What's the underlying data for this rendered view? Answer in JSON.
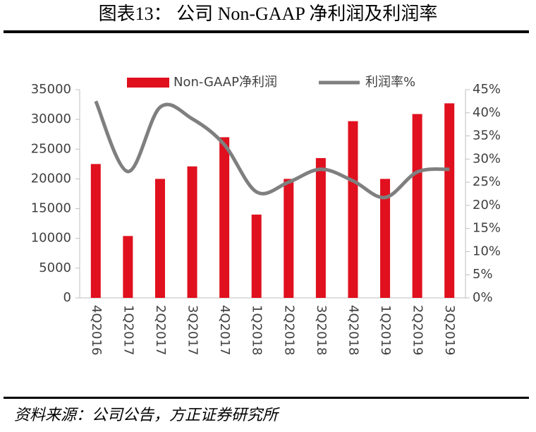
{
  "header": {
    "title": "图表13：  公司 Non-GAAP 净利润及利润率"
  },
  "chart_data": {
    "type": "bar-line",
    "categories": [
      "4Q2016",
      "1Q2017",
      "2Q2017",
      "3Q2017",
      "4Q2017",
      "1Q2018",
      "2Q2018",
      "3Q2018",
      "4Q2018",
      "1Q2019",
      "2Q2019",
      "3Q2019"
    ],
    "series": [
      {
        "name": "Non-GAAP净利润",
        "type": "bar",
        "color": "#e0101e",
        "values": [
          22500,
          10400,
          20000,
          22100,
          27000,
          14000,
          20000,
          23500,
          29700,
          20000,
          30900,
          32700
        ]
      },
      {
        "name": "利润率%",
        "type": "line",
        "color": "#7f7f7f",
        "axis": "y2",
        "values": [
          42.5,
          27.3,
          41.2,
          38.7,
          33.1,
          22.9,
          25.0,
          27.8,
          25.3,
          21.7,
          27.2,
          27.8
        ]
      }
    ],
    "ylim": [
      0,
      35000
    ],
    "yticks": [
      0,
      5000,
      10000,
      15000,
      20000,
      25000,
      30000,
      35000
    ],
    "y2lim": [
      0,
      45
    ],
    "y2ticks": [
      {
        "value": 0,
        "label": "0%"
      },
      {
        "value": 5,
        "label": "5%"
      },
      {
        "value": 10,
        "label": "10%"
      },
      {
        "value": 15,
        "label": "15%"
      },
      {
        "value": 20,
        "label": "20%"
      },
      {
        "value": 25,
        "label": "25%"
      },
      {
        "value": 30,
        "label": "30%"
      },
      {
        "value": 35,
        "label": "35%"
      },
      {
        "value": 40,
        "label": "40%"
      },
      {
        "value": 45,
        "label": "45%"
      }
    ],
    "legend": "top",
    "grid": false
  },
  "footer": {
    "source": "资料来源：公司公告，方正证券研究所"
  }
}
